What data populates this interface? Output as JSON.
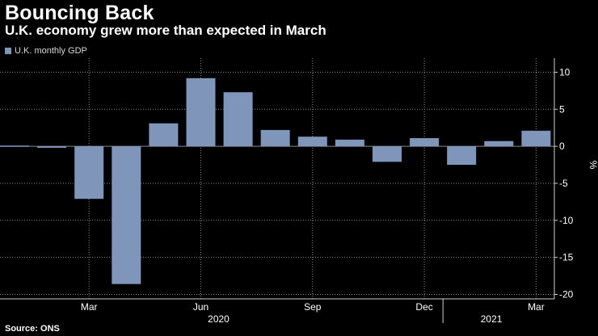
{
  "title": "Bouncing Back",
  "subtitle": "U.K. economy grew more than expected in March",
  "legend": {
    "label": "U.K. monthly GDP"
  },
  "source": "Source: ONS",
  "colors": {
    "bar": "#7f95b9",
    "grid": "#8a8a8a",
    "axis": "#cfcfcf",
    "background": "#000000"
  },
  "chart_data": {
    "type": "bar",
    "categories": [
      "2020-01",
      "2020-02",
      "2020-03",
      "2020-04",
      "2020-05",
      "2020-06",
      "2020-07",
      "2020-08",
      "2020-09",
      "2020-10",
      "2020-11",
      "2020-12",
      "2021-01",
      "2021-02",
      "2021-03"
    ],
    "series": [
      {
        "name": "U.K. monthly GDP",
        "values": [
          0.1,
          -0.2,
          -7.1,
          -18.6,
          3.1,
          9.2,
          7.3,
          2.2,
          1.3,
          0.9,
          -2.1,
          1.1,
          -2.5,
          0.7,
          2.1
        ]
      }
    ],
    "ylim": [
      -20.6,
      11.9
    ],
    "yticks": [
      10,
      5,
      0,
      -5,
      -10,
      -15,
      -20
    ],
    "ylabel": "%",
    "xticks": [
      {
        "category": "2020-03",
        "label": "Mar"
      },
      {
        "category": "2020-06",
        "label": "Jun"
      },
      {
        "category": "2020-09",
        "label": "Sep"
      },
      {
        "category": "2020-12",
        "label": "Dec"
      },
      {
        "category": "2021-03",
        "label": "Mar"
      }
    ],
    "year_labels": [
      {
        "category": "2020-06",
        "label": "2020"
      },
      {
        "category": "2021-01",
        "label": "2021"
      }
    ],
    "grid": true,
    "legend_position": "top-left"
  }
}
